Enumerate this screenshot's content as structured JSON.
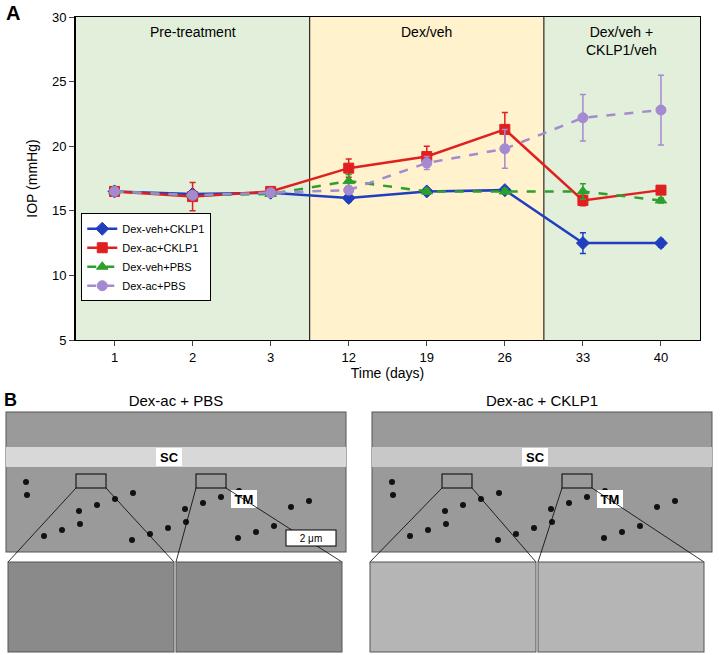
{
  "chart_data": {
    "type": "line",
    "panel_label": "A",
    "x_label": "Time (days)",
    "y_label": "IOP (mmHg)",
    "categories": [
      "1",
      "2",
      "3",
      "12",
      "19",
      "26",
      "33",
      "40"
    ],
    "ylim": [
      5,
      30
    ],
    "yticks": [
      5,
      10,
      15,
      20,
      25,
      30
    ],
    "grid": false,
    "legend": "lower left",
    "phases": [
      {
        "label": "Pre-treatment",
        "from": "1",
        "to": "3",
        "color": "#e2efda"
      },
      {
        "label": "Dex/veh",
        "from": "12",
        "to": "26",
        "color": "#fff2cc"
      },
      {
        "label": "Dex/veh +\nCKLP1/veh",
        "from": "33",
        "to": "40",
        "color": "#e2efda"
      }
    ],
    "series": [
      {
        "name": "Dex-veh+CKLP1",
        "color": "#1f3fbf",
        "marker": "diamond",
        "line_style": "solid",
        "values": [
          16.5,
          16.3,
          16.4,
          16.0,
          16.5,
          16.6,
          12.5,
          12.5
        ],
        "error": [
          0.2,
          0.2,
          0.2,
          0.3,
          0.2,
          0.2,
          0.8,
          0.3
        ]
      },
      {
        "name": "Dex-ac+CKLP1",
        "color": "#e02020",
        "marker": "square",
        "line_style": "solid",
        "values": [
          16.5,
          16.1,
          16.5,
          18.3,
          19.2,
          21.3,
          15.8,
          16.6
        ],
        "error": [
          0.3,
          1.1,
          0.3,
          0.7,
          0.8,
          1.3,
          0.4,
          0.3
        ]
      },
      {
        "name": "Dex-veh+PBS",
        "color": "#2ca02c",
        "marker": "triangle-up",
        "line_style": "dash",
        "values": [
          16.5,
          16.2,
          16.3,
          17.3,
          16.5,
          16.5,
          16.5,
          15.8
        ],
        "error": [
          0.2,
          0.2,
          0.2,
          0.5,
          0.2,
          0.2,
          0.6,
          0.2
        ]
      },
      {
        "name": "Dex-ac+PBS",
        "color": "#a48ad0",
        "marker": "circle",
        "line_style": "dash",
        "values": [
          16.5,
          16.2,
          16.4,
          16.6,
          18.7,
          19.8,
          22.2,
          22.8
        ],
        "error": [
          0.2,
          0.2,
          0.2,
          0.3,
          0.5,
          1.5,
          1.8,
          2.7
        ]
      }
    ]
  },
  "panel_b": {
    "label": "B",
    "images": [
      {
        "title": "Dex-ac + PBS",
        "labels": [
          "SC",
          "TM"
        ],
        "scale_bar": "2 μm"
      },
      {
        "title": "Dex-ac + CKLP1",
        "labels": [
          "SC",
          "TM"
        ]
      }
    ]
  }
}
